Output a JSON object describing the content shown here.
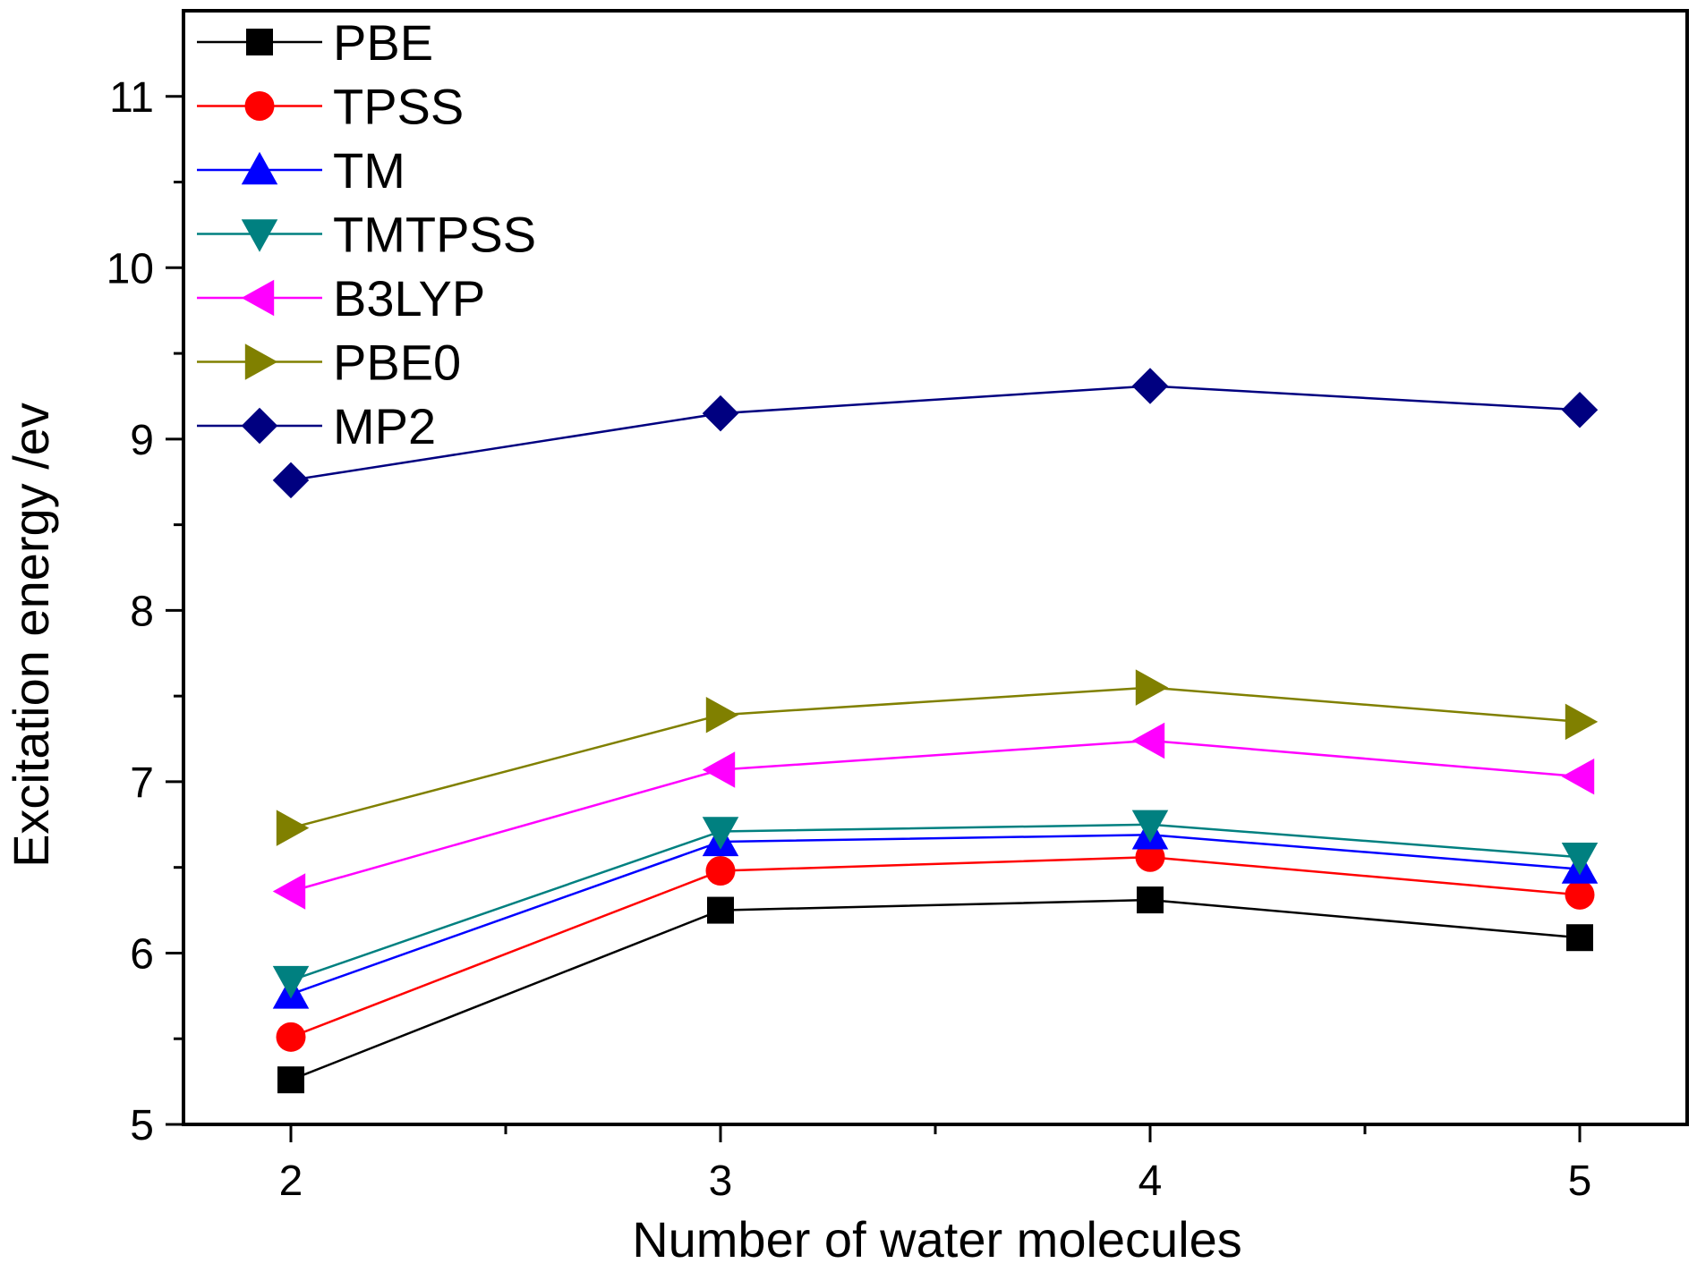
{
  "chart_data": {
    "type": "line",
    "title": "",
    "xlabel": "Number of water molecules",
    "ylabel": "Excitation energy /ev",
    "x": [
      2,
      3,
      4,
      5
    ],
    "xlim": [
      1.75,
      5.25
    ],
    "ylim": [
      5,
      11.5
    ],
    "x_ticks": [
      "2",
      "3",
      "4",
      "5"
    ],
    "y_ticks": [
      "5",
      "6",
      "7",
      "8",
      "9",
      "10",
      "11"
    ],
    "grid": false,
    "legend_position": "top-left",
    "series": [
      {
        "name": "PBE",
        "color": "#000000",
        "marker": "square",
        "values": [
          5.26,
          6.25,
          6.31,
          6.09
        ]
      },
      {
        "name": "TPSS",
        "color": "#ff0000",
        "marker": "circle",
        "values": [
          5.51,
          6.48,
          6.56,
          6.34
        ]
      },
      {
        "name": "TM",
        "color": "#0000ff",
        "marker": "triangle-up",
        "values": [
          5.76,
          6.65,
          6.69,
          6.49
        ]
      },
      {
        "name": "TMTPSS",
        "color": "#008080",
        "marker": "triangle-down",
        "values": [
          5.84,
          6.71,
          6.75,
          6.56
        ]
      },
      {
        "name": "B3LYP",
        "color": "#ff00ff",
        "marker": "triangle-left",
        "values": [
          6.36,
          7.07,
          7.24,
          7.03
        ]
      },
      {
        "name": "PBE0",
        "color": "#808000",
        "marker": "triangle-right",
        "values": [
          6.73,
          7.39,
          7.55,
          7.35
        ]
      },
      {
        "name": "MP2",
        "color": "#000080",
        "marker": "diamond",
        "values": [
          8.76,
          9.15,
          9.31,
          9.17
        ]
      }
    ]
  }
}
